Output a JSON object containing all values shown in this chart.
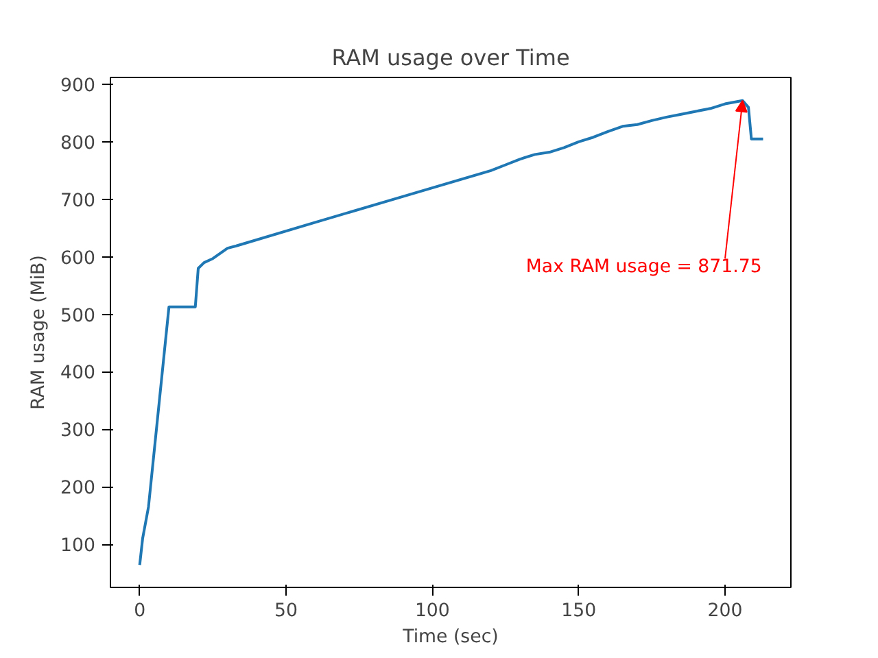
{
  "chart_data": {
    "type": "line",
    "title": "RAM usage over Time",
    "xlabel": "Time (sec)",
    "ylabel": "RAM usage (MiB)",
    "xlim": [
      -10,
      222.5
    ],
    "ylim": [
      25,
      912
    ],
    "xticks": [
      0,
      50,
      100,
      150,
      200
    ],
    "yticks": [
      100,
      200,
      300,
      400,
      500,
      600,
      700,
      800,
      900
    ],
    "grid": false,
    "x": [
      0,
      1,
      3,
      10,
      19,
      20,
      22,
      25,
      30,
      33,
      60,
      90,
      120,
      125,
      130,
      135,
      140,
      145,
      150,
      155,
      160,
      165,
      170,
      175,
      180,
      185,
      190,
      195,
      200,
      206,
      208,
      209,
      213
    ],
    "series": [
      {
        "color": "#1f77b4",
        "values": [
          64,
          110,
          165,
          513,
          513,
          580,
          590,
          597,
          615,
          619,
          660,
          705,
          750,
          760,
          770,
          778,
          782,
          790,
          800,
          808,
          818,
          827,
          830,
          837,
          843,
          848,
          853,
          858,
          866,
          871.75,
          860,
          805,
          805
        ]
      }
    ],
    "annotations": [
      {
        "text": "Max RAM usage = 871.75",
        "x": 206,
        "y": 871.75
      }
    ]
  }
}
